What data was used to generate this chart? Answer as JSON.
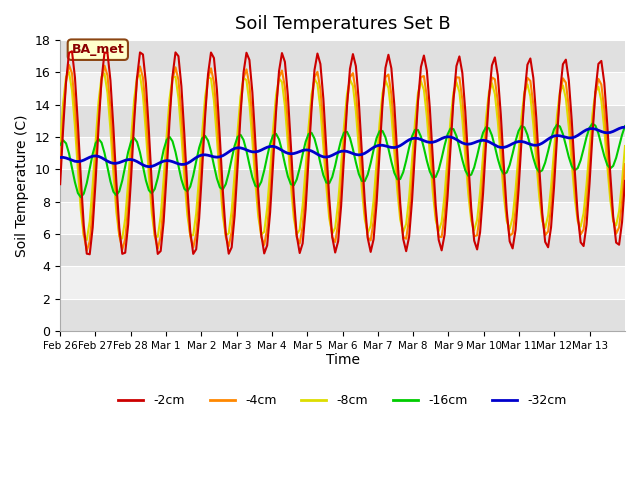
{
  "title": "Soil Temperatures Set B",
  "xlabel": "Time",
  "ylabel": "Soil Temperature (C)",
  "annotation": "BA_met",
  "ylim": [
    0,
    18
  ],
  "yticks": [
    0,
    2,
    4,
    6,
    8,
    10,
    12,
    14,
    16,
    18
  ],
  "xtick_labels": [
    "Feb 26",
    "Feb 27",
    "Feb 28",
    "Mar 1",
    "Mar 2",
    "Mar 3",
    "Mar 4",
    "Mar 5",
    "Mar 6",
    "Mar 7",
    "Mar 8",
    "Mar 9",
    "Mar 10",
    "Mar 11",
    "Mar 12",
    "Mar 13"
  ],
  "n_days": 16,
  "colors": {
    "2cm": "#cc0000",
    "4cm": "#ff8800",
    "8cm": "#dddd00",
    "16cm": "#00cc00",
    "32cm": "#0000cc"
  },
  "legend_labels": [
    "-2cm",
    "-4cm",
    "-8cm",
    "-16cm",
    "-32cm"
  ],
  "bg_color": "#ffffff",
  "plot_bg_light": "#f0f0f0",
  "plot_bg_dark": "#e0e0e0",
  "grid_color": "#ffffff"
}
